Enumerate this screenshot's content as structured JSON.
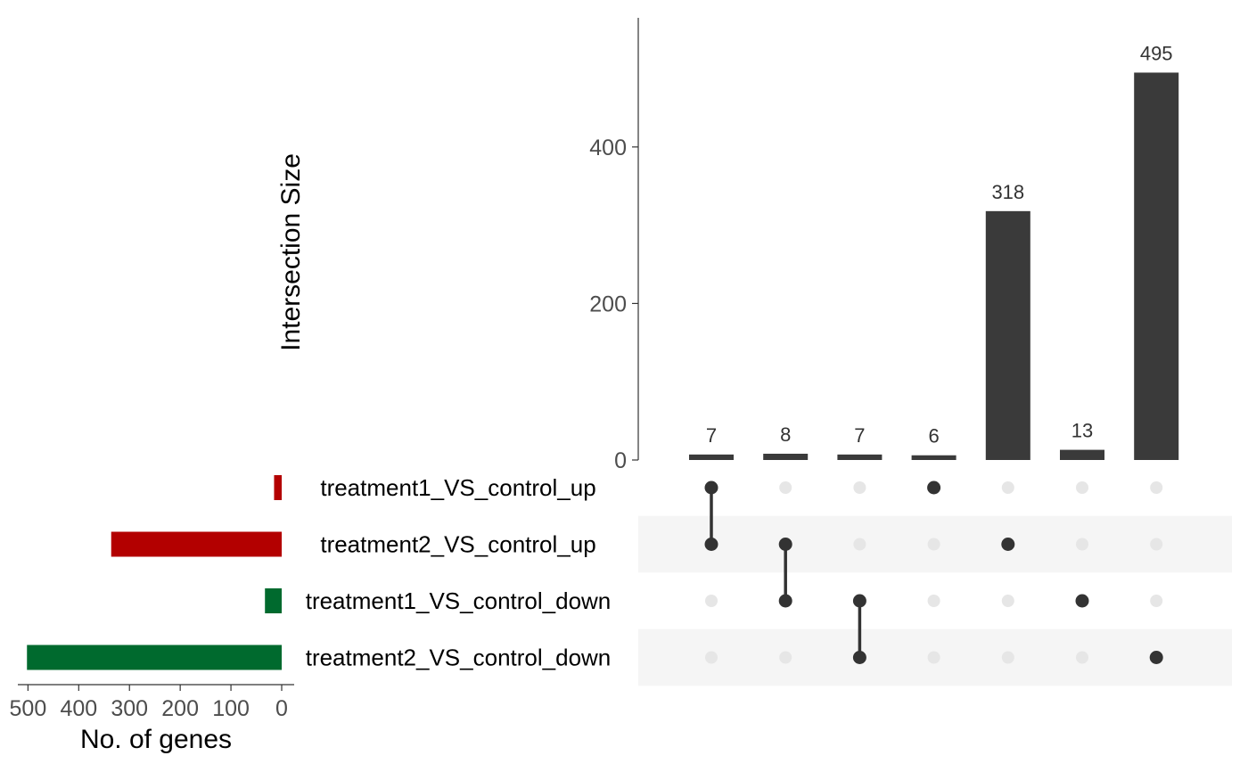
{
  "chart_data": {
    "type": "upset",
    "intersection_axis": {
      "ylabel": "Intersection Size",
      "ylim": [
        0,
        565
      ],
      "ticks": [
        0,
        200,
        400
      ],
      "tick_labels": [
        "0",
        "200",
        "400"
      ]
    },
    "set_size_axis": {
      "xlabel": "No. of genes",
      "xlim": [
        0,
        520
      ],
      "reversed": true,
      "ticks": [
        500,
        400,
        300,
        200,
        100,
        0
      ],
      "tick_labels": [
        "500",
        "400",
        "300",
        "200",
        "100",
        "0"
      ]
    },
    "sets": [
      {
        "name": "treatment1_VS_control_up",
        "size": 15,
        "color": "#b30000"
      },
      {
        "name": "treatment2_VS_control_up",
        "size": 336,
        "color": "#b30000"
      },
      {
        "name": "treatment1_VS_control_down",
        "size": 33,
        "color": "#006a2e"
      },
      {
        "name": "treatment2_VS_control_down",
        "size": 502,
        "color": "#006a2e"
      }
    ],
    "intersections": [
      {
        "size": 7,
        "label": "7",
        "sets": [
          0,
          1
        ]
      },
      {
        "size": 8,
        "label": "8",
        "sets": [
          1,
          2
        ]
      },
      {
        "size": 7,
        "label": "7",
        "sets": [
          2,
          3
        ]
      },
      {
        "size": 6,
        "label": "6",
        "sets": [
          0
        ]
      },
      {
        "size": 318,
        "label": "318",
        "sets": [
          1
        ]
      },
      {
        "size": 13,
        "label": "13",
        "sets": [
          2
        ]
      },
      {
        "size": 495,
        "label": "495",
        "sets": [
          3
        ]
      }
    ],
    "colors": {
      "bar": "#3a3a3a",
      "dot_active": "#333333",
      "dot_inactive": "#e6e6e6",
      "stripe": "#f5f5f5",
      "axis": "#333333",
      "tick_text": "#4d4d4d"
    }
  }
}
